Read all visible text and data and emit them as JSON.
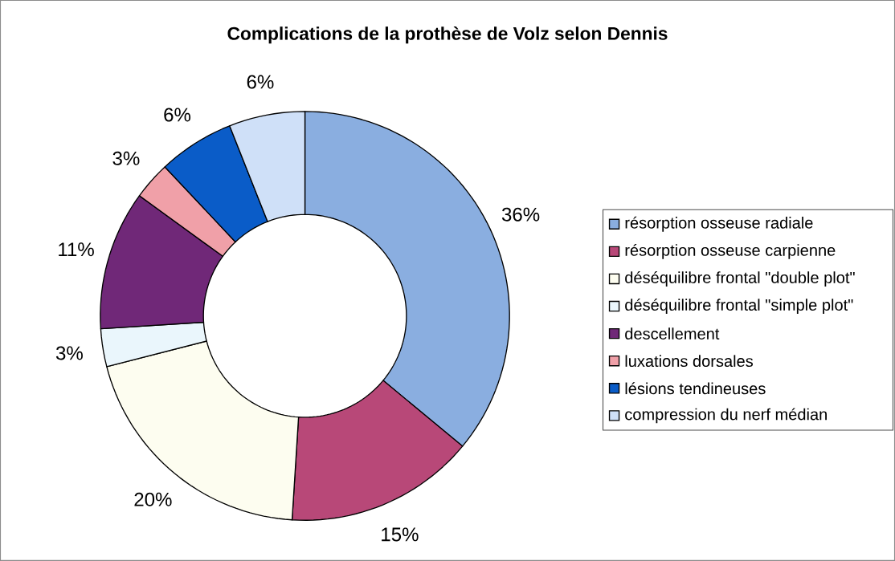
{
  "chart_data": {
    "type": "donut",
    "title": "Complications de la prothèse de Volz selon Dennis",
    "categories": [
      "résorption osseuse radiale",
      "résorption osseuse carpienne",
      "déséquilibre frontal \"double plot\"",
      "déséquilibre frontal \"simple plot\"",
      "descellement",
      "luxations dorsales",
      "lésions tendineuses",
      "compression du nerf médian"
    ],
    "values": [
      36,
      15,
      20,
      3,
      11,
      3,
      6,
      6
    ],
    "value_labels": [
      "36%",
      "15%",
      "20%",
      "3%",
      "11%",
      "3%",
      "6%",
      "6%"
    ],
    "colors": [
      "#8aaee0",
      "#b84878",
      "#fdfdf0",
      "#eaf6fc",
      "#702878",
      "#f0a0a8",
      "#0a5cc8",
      "#cfe0f8"
    ],
    "legend": "right"
  }
}
